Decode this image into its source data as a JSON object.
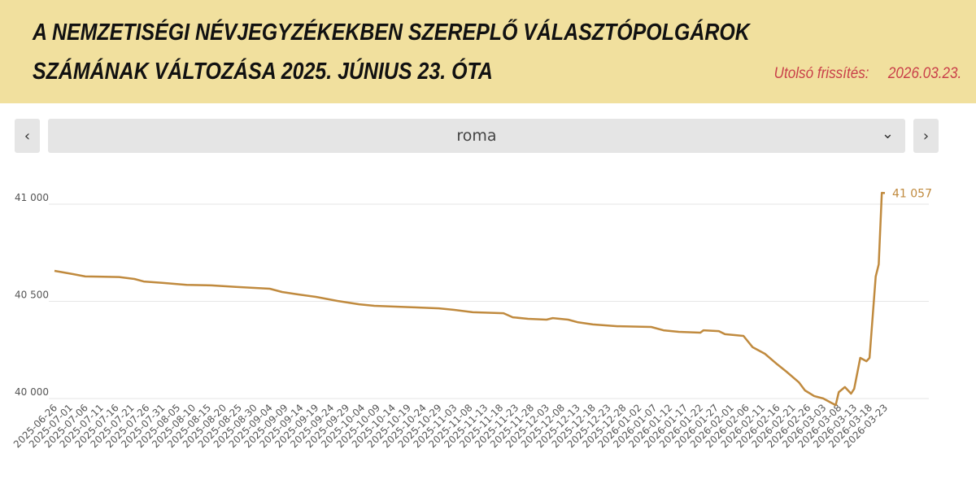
{
  "header": {
    "title_line1": "A NEMZETISÉGI NÉVJEGYZÉKEKBEN SZEREPLŐ VÁLASZTÓPOLGÁROK",
    "title_line2": "SZÁMÁNAK VÁLTOZÁSA 2025. JÚNIUS 23. ÓTA",
    "update_label": "Utolsó frissítés:",
    "update_date": "2026.03.23."
  },
  "selector": {
    "value": "roma",
    "prev_icon": "chevron-left",
    "next_icon": "chevron-right",
    "dropdown_icon": "chevron-down"
  },
  "colors": {
    "header_bg": "#f1e09e",
    "line": "#c08a3e",
    "update_text": "#c9404a"
  },
  "chart_data": {
    "type": "line",
    "title": "",
    "xlabel": "",
    "ylabel": "",
    "ylim": [
      40000,
      41000
    ],
    "yticks": [
      "40 000",
      "40 500",
      "41 000"
    ],
    "ytick_values": [
      40000,
      40500,
      41000
    ],
    "start_date": "2025-06-26",
    "xlim_days": [
      0,
      270
    ],
    "xticks": [
      "2025-06-26",
      "2025-07-01",
      "2025-07-06",
      "2025-07-11",
      "2025-07-16",
      "2025-07-21",
      "2025-07-26",
      "2025-07-31",
      "2025-08-05",
      "2025-08-10",
      "2025-08-15",
      "2025-08-20",
      "2025-08-25",
      "2025-08-30",
      "2025-09-04",
      "2025-09-09",
      "2025-09-14",
      "2025-09-19",
      "2025-09-24",
      "2025-09-29",
      "2025-10-04",
      "2025-10-09",
      "2025-10-14",
      "2025-10-19",
      "2025-10-24",
      "2025-10-29",
      "2025-11-03",
      "2025-11-08",
      "2025-11-13",
      "2025-11-18",
      "2025-11-23",
      "2025-11-28",
      "2025-12-03",
      "2025-12-08",
      "2025-12-13",
      "2025-12-18",
      "2025-12-23",
      "2025-12-28",
      "2026-01-02",
      "2026-01-07",
      "2026-01-12",
      "2026-01-17",
      "2026-01-22",
      "2026-01-27",
      "2026-02-01",
      "2026-02-06",
      "2026-02-11",
      "2026-02-16",
      "2026-02-21",
      "2026-02-26",
      "2026-03-03",
      "2026-03-08",
      "2026-03-13",
      "2026-03-18",
      "2026-03-23"
    ],
    "series": [
      {
        "name": "roma",
        "points_day_value": [
          [
            0,
            40657
          ],
          [
            6,
            40640
          ],
          [
            10,
            40628
          ],
          [
            21,
            40625
          ],
          [
            26,
            40615
          ],
          [
            29,
            40602
          ],
          [
            35,
            40595
          ],
          [
            43,
            40585
          ],
          [
            51,
            40582
          ],
          [
            59,
            40574
          ],
          [
            70,
            40565
          ],
          [
            74,
            40548
          ],
          [
            79,
            40536
          ],
          [
            85,
            40523
          ],
          [
            92,
            40502
          ],
          [
            99,
            40485
          ],
          [
            104,
            40477
          ],
          [
            117,
            40469
          ],
          [
            125,
            40464
          ],
          [
            130,
            40456
          ],
          [
            136,
            40444
          ],
          [
            146,
            40439
          ],
          [
            149,
            40418
          ],
          [
            154,
            40410
          ],
          [
            160,
            40406
          ],
          [
            162,
            40414
          ],
          [
            167,
            40406
          ],
          [
            170,
            40393
          ],
          [
            175,
            40381
          ],
          [
            183,
            40372
          ],
          [
            194,
            40368
          ],
          [
            198,
            40351
          ],
          [
            203,
            40343
          ],
          [
            210,
            40339
          ],
          [
            211,
            40351
          ],
          [
            216,
            40347
          ],
          [
            218,
            40331
          ],
          [
            224,
            40322
          ],
          [
            227,
            40264
          ],
          [
            231,
            40230
          ],
          [
            235,
            40176
          ],
          [
            238,
            40138
          ],
          [
            242,
            40084
          ],
          [
            244,
            40042
          ],
          [
            247,
            40013
          ],
          [
            250,
            40000
          ],
          [
            252,
            39983
          ],
          [
            254,
            39966
          ],
          [
            255,
            40033
          ],
          [
            257,
            40059
          ],
          [
            259,
            40025
          ],
          [
            260,
            40050
          ],
          [
            262,
            40209
          ],
          [
            264,
            40192
          ],
          [
            265,
            40209
          ],
          [
            267,
            40628
          ],
          [
            268,
            40690
          ],
          [
            269,
            41058
          ],
          [
            270,
            41057
          ]
        ],
        "end_label": "41 057"
      }
    ]
  }
}
